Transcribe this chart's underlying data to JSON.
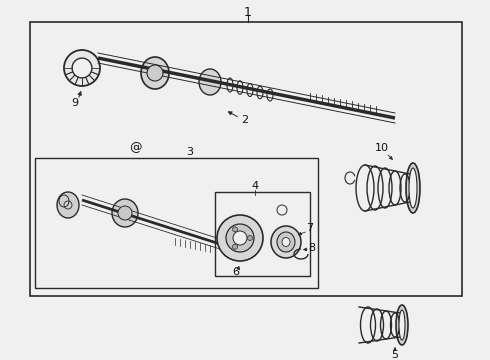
{
  "bg_color": "#f0f0f0",
  "line_color": "#2a2a2a",
  "label_color": "#111111",
  "fig_w": 4.9,
  "fig_h": 3.6,
  "dpi": 100
}
